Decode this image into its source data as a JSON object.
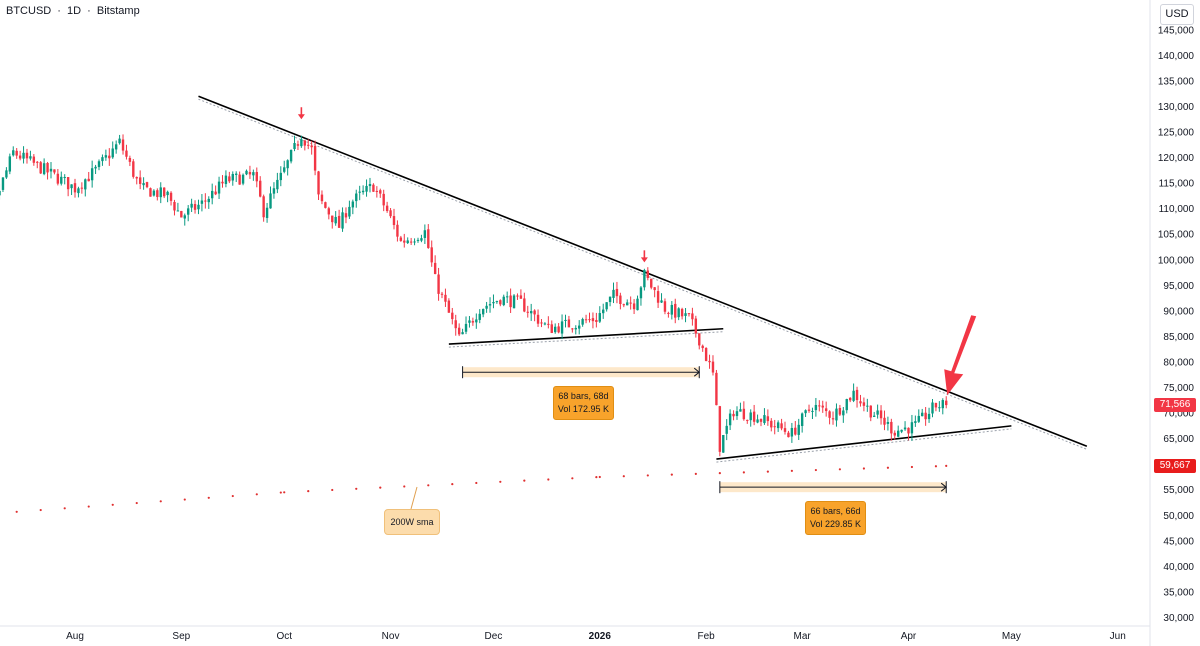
{
  "header": {
    "symbol": "BTCUSD",
    "sep1": "·",
    "interval": "1D",
    "sep2": "·",
    "exchange": "Bitstamp",
    "currency": "USD"
  },
  "chart_data": {
    "type": "candlestick",
    "y_axis": {
      "ticks": [
        145000,
        140000,
        135000,
        130000,
        125000,
        120000,
        115000,
        110000,
        105000,
        100000,
        95000,
        90000,
        85000,
        80000,
        75000,
        70000,
        65000,
        60000,
        55000,
        50000,
        45000,
        40000,
        35000,
        30000
      ],
      "tick_labels": [
        "145,000",
        "140,000",
        "135,000",
        "130,000",
        "125,000",
        "120,000",
        "115,000",
        "110,000",
        "105,000",
        "100,000",
        "95,000",
        "90,000",
        "85,000",
        "80,000",
        "75,000",
        "70,000",
        "65,000",
        "60,000",
        "55,000",
        "50,000",
        "45,000",
        "40,000",
        "35,000",
        "30,000"
      ],
      "ylim": [
        29000,
        148000
      ]
    },
    "x_axis": {
      "labels": [
        {
          "text": "Aug",
          "date": "2025-08-01",
          "bold": false
        },
        {
          "text": "Sep",
          "date": "2025-09-01",
          "bold": false
        },
        {
          "text": "Oct",
          "date": "2025-10-01",
          "bold": false
        },
        {
          "text": "Nov",
          "date": "2025-11-01",
          "bold": false
        },
        {
          "text": "Dec",
          "date": "2025-12-01",
          "bold": false
        },
        {
          "text": "2026",
          "date": "2026-01-01",
          "bold": true
        },
        {
          "text": "Feb",
          "date": "2026-02-01",
          "bold": false
        },
        {
          "text": "Mar",
          "date": "2026-03-01",
          "bold": false
        },
        {
          "text": "Apr",
          "date": "2026-04-01",
          "bold": false
        },
        {
          "text": "May",
          "date": "2026-05-01",
          "bold": false
        },
        {
          "text": "Jun",
          "date": "2026-06-01",
          "bold": false
        }
      ]
    },
    "price_path": [
      [
        "2025-07-01",
        107500
      ],
      [
        "2025-07-08",
        110000
      ],
      [
        "2025-07-14",
        121000
      ],
      [
        "2025-07-22",
        118000
      ],
      [
        "2025-08-01",
        114000
      ],
      [
        "2025-08-07",
        117500
      ],
      [
        "2025-08-14",
        123000
      ],
      [
        "2025-08-20",
        114000
      ],
      [
        "2025-08-28",
        112500
      ],
      [
        "2025-09-01",
        108500
      ],
      [
        "2025-09-07",
        111000
      ],
      [
        "2025-09-14",
        115500
      ],
      [
        "2025-09-22",
        116500
      ],
      [
        "2025-09-25",
        109500
      ],
      [
        "2025-10-01",
        117500
      ],
      [
        "2025-10-06",
        124500
      ],
      [
        "2025-10-09",
        121500
      ],
      [
        "2025-10-11",
        112000
      ],
      [
        "2025-10-17",
        106500
      ],
      [
        "2025-10-20",
        111000
      ],
      [
        "2025-10-27",
        114500
      ],
      [
        "2025-10-31",
        109500
      ],
      [
        "2025-11-04",
        103500
      ],
      [
        "2025-11-11",
        105500
      ],
      [
        "2025-11-14",
        96000
      ],
      [
        "2025-11-21",
        84500
      ],
      [
        "2025-11-27",
        90500
      ],
      [
        "2025-12-03",
        92500
      ],
      [
        "2025-12-09",
        91500
      ],
      [
        "2025-12-17",
        86500
      ],
      [
        "2025-12-24",
        87500
      ],
      [
        "2025-12-31",
        88500
      ],
      [
        "2026-01-05",
        93000
      ],
      [
        "2026-01-11",
        91500
      ],
      [
        "2026-01-14",
        97000
      ],
      [
        "2026-01-20",
        90500
      ],
      [
        "2026-01-27",
        88500
      ],
      [
        "2026-01-30",
        84500
      ],
      [
        "2026-02-03",
        77500
      ],
      [
        "2026-02-05",
        63500
      ],
      [
        "2026-02-09",
        70500
      ],
      [
        "2026-02-15",
        69500
      ],
      [
        "2026-02-21",
        67500
      ],
      [
        "2026-02-26",
        66000
      ],
      [
        "2026-03-04",
        71500
      ],
      [
        "2026-03-10",
        69500
      ],
      [
        "2026-03-16",
        74000
      ],
      [
        "2026-03-20",
        71000
      ],
      [
        "2026-03-28",
        66500
      ],
      [
        "2026-04-03",
        67500
      ],
      [
        "2026-04-09",
        71500
      ],
      [
        "2026-04-12",
        71566
      ]
    ],
    "sma": {
      "label": "200W sma",
      "points": [
        [
          "2025-07-01",
          50000
        ],
        [
          "2025-10-01",
          54500
        ],
        [
          "2026-01-01",
          57500
        ],
        [
          "2026-04-12",
          59667
        ]
      ]
    },
    "trendlines": [
      {
        "name": "descending resistance",
        "from": [
          "2025-09-06",
          132000
        ],
        "to": [
          "2026-05-23",
          63500
        ]
      },
      {
        "name": "range support",
        "from": [
          "2025-11-18",
          83500
        ],
        "to": [
          "2026-02-06",
          86500
        ]
      },
      {
        "name": "triangle support",
        "from": [
          "2026-02-04",
          61000
        ],
        "to": [
          "2026-05-01",
          67500
        ]
      }
    ],
    "markers": [
      {
        "type": "down-arrow",
        "date": "2025-10-06",
        "value": 127500
      },
      {
        "type": "down-arrow",
        "date": "2026-01-14",
        "value": 99500
      }
    ],
    "measures": [
      {
        "from": "2025-11-22",
        "to": "2026-01-30",
        "value": 78000,
        "bars_label": "68 bars, 68d",
        "vol_label": "Vol 172.95 K"
      },
      {
        "from": "2026-02-05",
        "to": "2026-04-12",
        "value": 55500,
        "bars_label": "66 bars, 66d",
        "vol_label": "Vol 229.85 K"
      }
    ],
    "price_labels": [
      {
        "text": "71,566",
        "value": 71566,
        "color": "#f23645"
      },
      {
        "text": "59,667",
        "value": 59667,
        "color": "#e81c1c"
      }
    ],
    "colors": {
      "up": "#089981",
      "down": "#f23645",
      "sma": "#e03030",
      "measure": "#f8a32b",
      "trendline": "#000000"
    }
  }
}
